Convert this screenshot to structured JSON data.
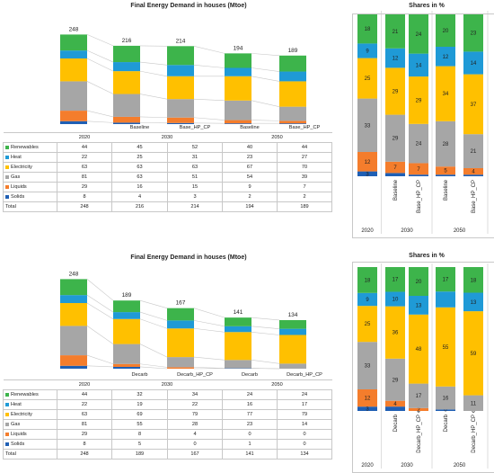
{
  "colors": {
    "Renewables": "#3db44b",
    "Heat": "#1f9ad6",
    "Electricity": "#ffc000",
    "Gas": "#a6a6a6",
    "Liquids": "#f47d2c",
    "Solids": "#1f5fb4"
  },
  "chart_data": [
    {
      "type": "bar",
      "stacked": true,
      "title": "Final Energy Demand in houses (Mtoe)",
      "categories": [
        "2020",
        "Baseline",
        "Base_HP_CP",
        "Baseline",
        "Base_HP_CP"
      ],
      "groups": [
        {
          "label": "2030",
          "span": [
            1,
            2
          ]
        },
        {
          "label": "2050",
          "span": [
            3,
            4
          ]
        }
      ],
      "totals": [
        248,
        216,
        214,
        194,
        189
      ],
      "series": [
        {
          "name": "Renewables",
          "values": [
            44,
            45,
            52,
            40,
            44
          ]
        },
        {
          "name": "Heat",
          "values": [
            22,
            25,
            31,
            23,
            27
          ]
        },
        {
          "name": "Electricity",
          "values": [
            63,
            63,
            63,
            67,
            70
          ]
        },
        {
          "name": "Gas",
          "values": [
            81,
            63,
            51,
            54,
            39
          ]
        },
        {
          "name": "Liquids",
          "values": [
            29,
            16,
            15,
            9,
            7
          ]
        },
        {
          "name": "Solids",
          "values": [
            8,
            4,
            3,
            2,
            2
          ]
        }
      ],
      "total_label": "Total"
    },
    {
      "type": "bar",
      "stacked": true,
      "title": "Shares in %",
      "categories": [
        "2020",
        "Baseline",
        "Base_HP_CP",
        "Baseline",
        "Base_HP_CP"
      ],
      "groups": [
        {
          "label": "2030",
          "span": [
            1,
            2
          ]
        },
        {
          "label": "2050",
          "span": [
            3,
            4
          ]
        }
      ],
      "series": [
        {
          "name": "Renewables",
          "values": [
            18,
            21,
            24,
            20,
            23
          ]
        },
        {
          "name": "Heat",
          "values": [
            9,
            12,
            14,
            12,
            14
          ]
        },
        {
          "name": "Electricity",
          "values": [
            25,
            29,
            29,
            34,
            37
          ]
        },
        {
          "name": "Gas",
          "values": [
            33,
            29,
            24,
            28,
            21
          ]
        },
        {
          "name": "Liquids",
          "values": [
            12,
            7,
            7,
            5,
            4
          ]
        },
        {
          "name": "Solids",
          "values": [
            3,
            2,
            1,
            1,
            1
          ]
        }
      ],
      "labels": [
        [
          "18",
          "21",
          "24",
          "20",
          "23"
        ],
        [
          "9",
          "12",
          "14",
          "12",
          "14"
        ],
        [
          "25",
          "29",
          "29",
          "34",
          "37"
        ],
        [
          "33",
          "29",
          "24",
          "28",
          "21"
        ],
        [
          "12",
          "7",
          "7",
          "5",
          "4"
        ],
        [
          "3",
          "",
          "",
          "",
          ""
        ]
      ]
    },
    {
      "type": "bar",
      "stacked": true,
      "title": "Final Energy Demand in houses (Mtoe)",
      "categories": [
        "2020",
        "Decarb",
        "Decarb_HP_CP",
        "Decarb",
        "Decarb_HP_CP"
      ],
      "groups": [
        {
          "label": "2030",
          "span": [
            1,
            2
          ]
        },
        {
          "label": "2050",
          "span": [
            3,
            4
          ]
        }
      ],
      "totals": [
        248,
        189,
        167,
        141,
        134
      ],
      "series": [
        {
          "name": "Renewables",
          "values": [
            44,
            32,
            34,
            24,
            24
          ]
        },
        {
          "name": "Heat",
          "values": [
            22,
            19,
            22,
            16,
            17
          ]
        },
        {
          "name": "Electricity",
          "values": [
            63,
            69,
            79,
            77,
            79
          ]
        },
        {
          "name": "Gas",
          "values": [
            81,
            55,
            28,
            23,
            14
          ]
        },
        {
          "name": "Liquids",
          "values": [
            29,
            8,
            4,
            0,
            0
          ]
        },
        {
          "name": "Solids",
          "values": [
            8,
            5,
            0,
            1,
            0
          ]
        }
      ],
      "total_label": "Total"
    },
    {
      "type": "bar",
      "stacked": true,
      "title": "Shares in %",
      "categories": [
        "2020",
        "Decarb",
        "Decarb_HP_CP",
        "Decarb",
        "Decarb_HP_CP"
      ],
      "groups": [
        {
          "label": "2030",
          "span": [
            1,
            2
          ]
        },
        {
          "label": "2050",
          "span": [
            3,
            4
          ]
        }
      ],
      "series": [
        {
          "name": "Renewables",
          "values": [
            18,
            17,
            20,
            17,
            18
          ]
        },
        {
          "name": "Heat",
          "values": [
            9,
            10,
            13,
            11,
            13
          ]
        },
        {
          "name": "Electricity",
          "values": [
            25,
            36,
            48,
            55,
            59
          ]
        },
        {
          "name": "Gas",
          "values": [
            33,
            29,
            17,
            16,
            11
          ]
        },
        {
          "name": "Liquids",
          "values": [
            12,
            4,
            2,
            0,
            0
          ]
        },
        {
          "name": "Solids",
          "values": [
            3,
            3,
            0,
            1,
            0
          ]
        }
      ],
      "labels": [
        [
          "18",
          "17",
          "20",
          "17",
          "18"
        ],
        [
          "9",
          "10",
          "13",
          "",
          "13"
        ],
        [
          "25",
          "36",
          "48",
          "55",
          "59"
        ],
        [
          "33",
          "29",
          "17",
          "16",
          "11"
        ],
        [
          "12",
          "4",
          "2",
          "0",
          "0"
        ],
        [
          "3",
          "",
          "0",
          "",
          "0"
        ]
      ]
    }
  ]
}
